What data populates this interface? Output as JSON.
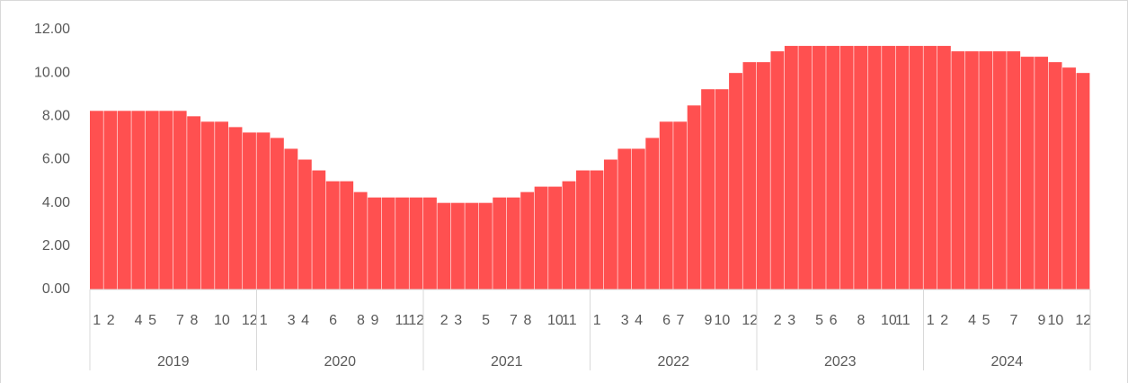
{
  "chart_data": {
    "type": "bar",
    "categories": [
      1,
      2,
      null,
      4,
      5,
      null,
      7,
      8,
      null,
      10,
      null,
      12,
      1,
      null,
      3,
      4,
      null,
      6,
      null,
      8,
      9,
      null,
      11,
      12,
      null,
      2,
      3,
      null,
      5,
      null,
      7,
      8,
      null,
      10,
      11,
      null,
      1,
      null,
      3,
      4,
      null,
      6,
      7,
      null,
      9,
      10,
      null,
      12,
      null,
      2,
      3,
      null,
      5,
      6,
      null,
      8,
      null,
      10,
      11,
      null,
      1,
      2,
      null,
      4,
      5,
      null,
      7,
      null,
      9,
      10,
      null,
      12
    ],
    "years": [
      "2019",
      "2020",
      "2021",
      "2022",
      "2023",
      "2024"
    ],
    "values": [
      8.25,
      8.25,
      8.25,
      8.25,
      8.25,
      8.25,
      8.25,
      8.0,
      7.75,
      7.75,
      7.5,
      7.25,
      7.25,
      7.0,
      6.5,
      6.0,
      5.5,
      5.0,
      5.0,
      4.5,
      4.25,
      4.25,
      4.25,
      4.25,
      4.25,
      4.0,
      4.0,
      4.0,
      4.0,
      4.25,
      4.25,
      4.5,
      4.75,
      4.75,
      5.0,
      5.5,
      5.5,
      6.0,
      6.5,
      6.5,
      7.0,
      7.75,
      7.75,
      8.5,
      9.25,
      9.25,
      10.0,
      10.5,
      10.5,
      11.0,
      11.25,
      11.25,
      11.25,
      11.25,
      11.25,
      11.25,
      11.25,
      11.25,
      11.25,
      11.25,
      11.25,
      11.25,
      11.0,
      11.0,
      11.0,
      11.0,
      11.0,
      10.75,
      10.75,
      10.5,
      10.25,
      10.0
    ],
    "color": "#ff5050",
    "ylim": [
      0,
      12
    ],
    "yticks": [
      {
        "value": 0,
        "label": "0.00"
      },
      {
        "value": 2,
        "label": "2.00"
      },
      {
        "value": 4,
        "label": "4.00"
      },
      {
        "value": 6,
        "label": "6.00"
      },
      {
        "value": 8,
        "label": "8.00"
      },
      {
        "value": 10,
        "label": "10.00"
      },
      {
        "value": 12,
        "label": "12.00"
      }
    ]
  }
}
